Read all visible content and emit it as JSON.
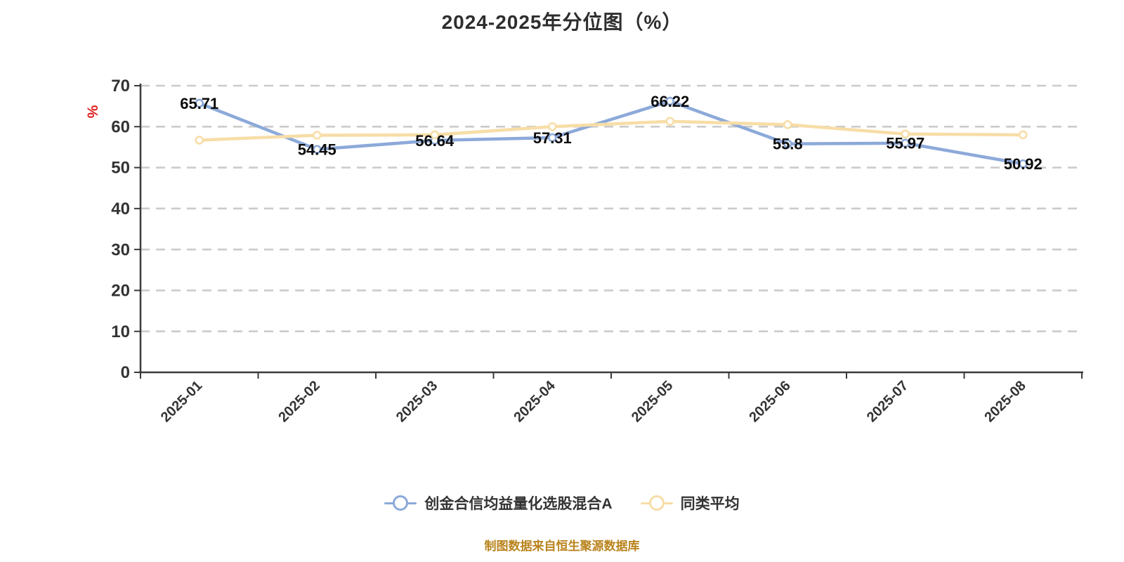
{
  "title": "2024-2025年分位图（%）",
  "y_axis": {
    "unit": "%",
    "ticks": [
      0,
      10,
      20,
      30,
      40,
      50,
      60,
      70
    ],
    "max": 70
  },
  "footer": "制图数据来自恒生聚源数据库",
  "colors": {
    "fund_line": "#8CA9D9",
    "average_line": "#F7DDA7",
    "grid": "#CBCBCB",
    "axis": "#3A3A3A",
    "tick_text": "#333333",
    "value_label_text": "#0B0B0B",
    "title_text": "#2E2E2E",
    "unit_text": "#E11D1D",
    "footer_text": "#B9831C",
    "legend_text": "#333333",
    "background": "#FFFFFF"
  },
  "chart_data": {
    "type": "line",
    "title": "2024-2025年分位图（%）",
    "categories": [
      "2025-01",
      "2025-02",
      "2025-03",
      "2025-04",
      "2025-05",
      "2025-06",
      "2025-07",
      "2025-08"
    ],
    "series": [
      {
        "name": "创金合信均益量化选股混合A",
        "color": "#8CA9D9",
        "values": [
          65.71,
          54.45,
          56.64,
          57.31,
          66.22,
          55.8,
          55.97,
          50.92
        ],
        "show_labels": true
      },
      {
        "name": "同类平均",
        "color": "#F7DDA7",
        "values": [
          56.7,
          57.9,
          58.0,
          60.0,
          61.3,
          60.5,
          58.2,
          58.0
        ],
        "show_labels": false
      }
    ],
    "ylabel": "%",
    "xlabel": "",
    "ylim": [
      0,
      70
    ],
    "grid": "horizontal-dashed",
    "legend_position": "bottom",
    "x_axis_label_rotation": 45
  }
}
